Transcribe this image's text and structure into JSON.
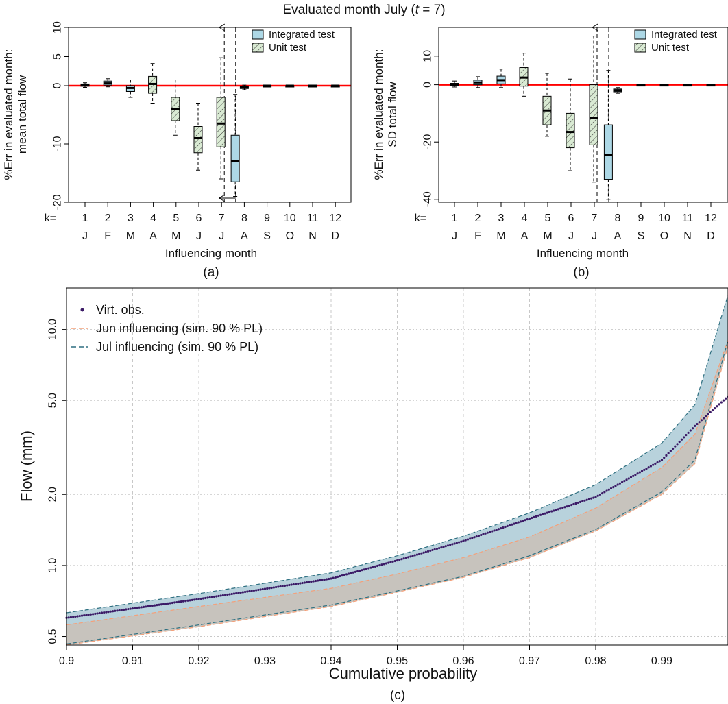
{
  "figure": {
    "suptitle_prefix": "Evaluated month July (",
    "suptitle_var": "t",
    "suptitle_suffix": " = 7)"
  },
  "chart_data": [
    {
      "id": "a",
      "type": "boxplot",
      "panel_label": "(a)",
      "ylabel_line1": "%Err in evaluated month:",
      "ylabel_line2": "mean total flow",
      "xlabel": "Influencing month",
      "k_prefix": "k=",
      "k_values": [
        "1",
        "2",
        "3",
        "4",
        "5",
        "6",
        "7",
        "8",
        "9",
        "10",
        "11",
        "12"
      ],
      "months": [
        "J",
        "F",
        "M",
        "A",
        "M",
        "J",
        "J",
        "A",
        "S",
        "O",
        "N",
        "D"
      ],
      "ylim": [
        -20,
        10
      ],
      "yticks": [
        -20,
        -10,
        0,
        5,
        10
      ],
      "ytick_labels": [
        "-20",
        "-10",
        "0",
        "5",
        "10"
      ],
      "legend": [
        "Integrated test",
        "Unit test"
      ],
      "colors": {
        "integrated": "#add8e6",
        "unit": "#d9ead3",
        "zero_line": "#ff0000"
      },
      "series": [
        {
          "name": "Integrated test",
          "boxes": [
            {
              "k": 1,
              "min": -0.3,
              "q1": -0.1,
              "median": 0.1,
              "q3": 0.3,
              "max": 0.5
            },
            {
              "k": 2,
              "min": -0.2,
              "q1": 0.1,
              "median": 0.4,
              "q3": 0.8,
              "max": 1.2
            },
            {
              "k": 3,
              "min": -2.0,
              "q1": -1.0,
              "median": -0.4,
              "q3": 0.0,
              "max": 1.0
            },
            {
              "k": 7.6,
              "min": -19.0,
              "q1": -16.5,
              "median": -13.0,
              "q3": -8.5,
              "max": -1.5
            },
            {
              "k": 8,
              "min": -0.7,
              "q1": -0.5,
              "median": -0.3,
              "q3": -0.1,
              "max": 0.1
            },
            {
              "k": 9,
              "min": -0.1,
              "q1": 0.0,
              "median": 0.0,
              "q3": 0.0,
              "max": 0.1
            },
            {
              "k": 10,
              "min": -0.1,
              "q1": 0.0,
              "median": 0.0,
              "q3": 0.0,
              "max": 0.1
            },
            {
              "k": 11,
              "min": -0.1,
              "q1": 0.0,
              "median": 0.0,
              "q3": 0.0,
              "max": 0.1
            },
            {
              "k": 12,
              "min": -0.1,
              "q1": 0.0,
              "median": 0.0,
              "q3": 0.0,
              "max": 0.1
            }
          ]
        },
        {
          "name": "Unit test",
          "boxes": [
            {
              "k": 4,
              "min": -3.0,
              "q1": -1.3,
              "median": 0.3,
              "q3": 1.6,
              "max": 3.8
            },
            {
              "k": 5,
              "min": -8.5,
              "q1": -6.0,
              "median": -4.0,
              "q3": -2.0,
              "max": 1.0
            },
            {
              "k": 6,
              "min": -14.5,
              "q1": -11.5,
              "median": -9.0,
              "q3": -7.0,
              "max": -3.0
            },
            {
              "k": 7,
              "min": -16.0,
              "q1": -10.5,
              "median": -6.5,
              "q3": -2.0,
              "max": 4.8
            }
          ]
        }
      ],
      "arrow_top_y": 10,
      "arrow_bottom_y": -20,
      "vline_k": [
        7,
        7.5
      ]
    },
    {
      "id": "b",
      "type": "boxplot",
      "panel_label": "(b)",
      "ylabel_line1": "%Err in evaluated month:",
      "ylabel_line2": "SD total flow",
      "xlabel": "Influencing month",
      "k_prefix": "k=",
      "k_values": [
        "1",
        "2",
        "3",
        "4",
        "5",
        "6",
        "7",
        "8",
        "9",
        "10",
        "11",
        "12"
      ],
      "months": [
        "J",
        "F",
        "M",
        "A",
        "M",
        "J",
        "J",
        "A",
        "S",
        "O",
        "N",
        "D"
      ],
      "ylim": [
        -41,
        20
      ],
      "yticks": [
        -40,
        -20,
        0,
        10
      ],
      "ytick_labels": [
        "-40",
        "-20",
        "0",
        "10"
      ],
      "legend": [
        "Integrated test",
        "Unit test"
      ],
      "colors": {
        "integrated": "#add8e6",
        "unit": "#d9ead3",
        "zero_line": "#ff0000"
      },
      "series": [
        {
          "name": "Integrated test",
          "boxes": [
            {
              "k": 1,
              "min": -0.8,
              "q1": -0.3,
              "median": 0.1,
              "q3": 0.5,
              "max": 1.3
            },
            {
              "k": 2,
              "min": -1.0,
              "q1": 0.0,
              "median": 0.8,
              "q3": 1.6,
              "max": 2.8
            },
            {
              "k": 3,
              "min": -1.0,
              "q1": 0.3,
              "median": 1.6,
              "q3": 3.0,
              "max": 5.5
            },
            {
              "k": 7.6,
              "min": -40.0,
              "q1": -33.0,
              "median": -24.5,
              "q3": -14.0,
              "max": 5.0
            },
            {
              "k": 8,
              "min": -3.0,
              "q1": -2.5,
              "median": -2.0,
              "q3": -1.5,
              "max": -1.0
            },
            {
              "k": 9,
              "min": -0.2,
              "q1": 0.0,
              "median": 0.0,
              "q3": 0.0,
              "max": 0.2
            },
            {
              "k": 10,
              "min": -0.2,
              "q1": 0.0,
              "median": 0.0,
              "q3": 0.0,
              "max": 0.2
            },
            {
              "k": 11,
              "min": -0.2,
              "q1": 0.0,
              "median": 0.0,
              "q3": 0.0,
              "max": 0.2
            },
            {
              "k": 12,
              "min": -0.2,
              "q1": 0.0,
              "median": 0.0,
              "q3": 0.0,
              "max": 0.2
            }
          ]
        },
        {
          "name": "Unit test",
          "boxes": [
            {
              "k": 4,
              "min": -4.0,
              "q1": -0.5,
              "median": 2.5,
              "q3": 6.0,
              "max": 11.0
            },
            {
              "k": 5,
              "min": -18.0,
              "q1": -14.0,
              "median": -9.0,
              "q3": -4.0,
              "max": 4.0
            },
            {
              "k": 6,
              "min": -30.0,
              "q1": -22.0,
              "median": -16.5,
              "q3": -10.0,
              "max": 2.0
            },
            {
              "k": 7,
              "min": -34.0,
              "q1": -21.0,
              "median": -11.5,
              "q3": 0.0,
              "max": 17.0
            }
          ]
        }
      ],
      "arrow_top_y": 20,
      "arrow_bottom_y": null,
      "vline_k": [
        7,
        7.5
      ]
    },
    {
      "id": "c",
      "type": "area",
      "panel_label": "(c)",
      "xlabel": "Cumulative probability",
      "ylabel": "Flow (mm)",
      "xlim": [
        0.9,
        1.0
      ],
      "xticks": [
        0.9,
        0.91,
        0.92,
        0.93,
        0.94,
        0.95,
        0.96,
        0.97,
        0.98,
        0.99
      ],
      "xtick_labels": [
        "0.9",
        "0.91",
        "0.92",
        "0.93",
        "0.94",
        "0.95",
        "0.96",
        "0.97",
        "0.98",
        "0.99"
      ],
      "ylim": [
        0.46,
        15.0
      ],
      "yscale": "log",
      "yticks": [
        0.5,
        1.0,
        2.0,
        5.0,
        10.0
      ],
      "ytick_labels": [
        "0.5",
        "1.0",
        "2.0",
        "5.0",
        "10.0"
      ],
      "grid": true,
      "legend_position": "top-left",
      "legend": [
        "Virt. obs.",
        "Jun influencing (sim. 90 % PL)",
        "Jul influencing (sim. 90 % PL)"
      ],
      "colors": {
        "obs": "#3b1a66",
        "jun": "#f4a07a",
        "jul": "#2e6f80",
        "jul_fill": "#b8d2dc",
        "jun_fill": "#c7c2bb"
      },
      "series": [
        {
          "name": "Virt. obs.",
          "x": [
            0.9,
            0.92,
            0.94,
            0.95,
            0.96,
            0.97,
            0.98,
            0.99,
            0.995,
            1.0
          ],
          "y": [
            0.6,
            0.72,
            0.88,
            1.05,
            1.27,
            1.58,
            1.95,
            2.8,
            3.9,
            5.2
          ]
        },
        {
          "name": "Jul influencing (sim. 90 % PL)",
          "x": [
            0.9,
            0.92,
            0.94,
            0.95,
            0.96,
            0.97,
            0.98,
            0.99,
            0.995,
            1.0
          ],
          "upper": [
            0.63,
            0.76,
            0.93,
            1.1,
            1.33,
            1.67,
            2.2,
            3.3,
            4.8,
            14.0
          ],
          "lower": [
            0.465,
            0.56,
            0.68,
            0.78,
            0.9,
            1.1,
            1.42,
            2.05,
            2.8,
            9.0
          ]
        },
        {
          "name": "Jun influencing (sim. 90 % PL)",
          "x": [
            0.9,
            0.92,
            0.94,
            0.95,
            0.96,
            0.97,
            0.98,
            0.99,
            0.995,
            1.0
          ],
          "upper": [
            0.56,
            0.67,
            0.8,
            0.92,
            1.08,
            1.32,
            1.75,
            2.6,
            3.6,
            9.0
          ],
          "lower": [
            0.46,
            0.55,
            0.67,
            0.77,
            0.89,
            1.08,
            1.4,
            2.0,
            2.7,
            8.5
          ]
        }
      ]
    }
  ]
}
